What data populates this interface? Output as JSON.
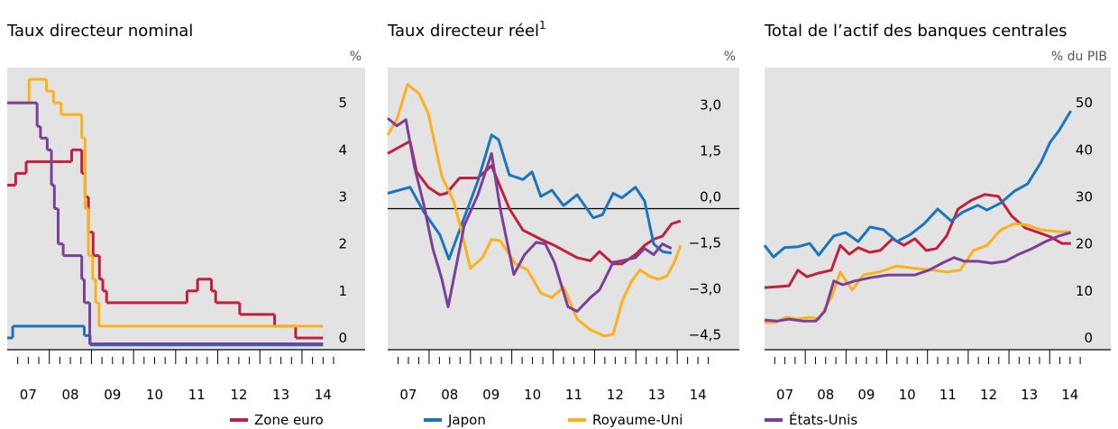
{
  "chart_data": [
    {
      "type": "step",
      "title": "Taux directeur nominal",
      "unit": "%",
      "xlim": [
        2007,
        2015.5
      ],
      "ylim": [
        0,
        6
      ],
      "yticks": [
        0,
        1,
        2,
        3,
        4,
        5
      ],
      "xticks": [
        {
          "value": 2007.5,
          "label": "07"
        },
        {
          "value": 2008.5,
          "label": "08"
        },
        {
          "value": 2009.5,
          "label": "09"
        },
        {
          "value": 2010.5,
          "label": "10"
        },
        {
          "value": 2011.5,
          "label": "11"
        },
        {
          "value": 2012.5,
          "label": "12"
        },
        {
          "value": 2013.5,
          "label": "13"
        },
        {
          "value": 2014.5,
          "label": "14"
        }
      ],
      "xticks_major": [
        2008,
        2009,
        2010,
        2011,
        2012,
        2013,
        2014
      ],
      "xticks_minor": [
        2007.25,
        2007.5,
        2007.75,
        2008.25,
        2008.5,
        2008.75,
        2009.25,
        2009.5,
        2009.75,
        2010.25,
        2010.5,
        2010.75,
        2011.25,
        2011.5,
        2011.75,
        2012.25,
        2012.5,
        2012.75,
        2013.25,
        2013.5,
        2013.75,
        2014.25,
        2014.5,
        2014.75
      ],
      "series": [
        {
          "name": "Zone euro",
          "color": "#c0203d",
          "x": [
            2007.0,
            2007.2,
            2007.45,
            2008.53,
            2008.77,
            2008.85,
            2008.93,
            2009.04,
            2009.19,
            2009.27,
            2009.36,
            2011.27,
            2011.52,
            2011.85,
            2011.95,
            2012.52,
            2013.35,
            2013.85,
            2014.5
          ],
          "values": [
            3.5,
            3.75,
            4.0,
            4.25,
            3.75,
            3.25,
            2.5,
            2.0,
            1.5,
            1.25,
            1.0,
            1.25,
            1.5,
            1.25,
            1.0,
            0.75,
            0.5,
            0.25,
            0.25
          ]
        },
        {
          "name": "Japon",
          "color": "#1a75bc",
          "x": [
            2007.0,
            2007.13,
            2008.83,
            2008.97,
            2014.5
          ],
          "values": [
            0.25,
            0.5,
            0.3,
            0.1,
            0.1
          ]
        },
        {
          "name": "Royaume-Uni",
          "color": "#fcb11c",
          "x": [
            2007.0,
            2007.52,
            2007.93,
            2008.1,
            2008.28,
            2008.77,
            2008.85,
            2008.93,
            2009.03,
            2009.1,
            2009.18,
            2014.5
          ],
          "values": [
            5.25,
            5.75,
            5.5,
            5.25,
            5.0,
            4.5,
            3.0,
            2.0,
            1.5,
            1.0,
            0.5,
            0.5
          ]
        },
        {
          "name": "États-Unis",
          "color": "#7b3f99",
          "x": [
            2007.0,
            2007.71,
            2007.79,
            2007.95,
            2008.05,
            2008.12,
            2008.21,
            2008.33,
            2008.77,
            2008.83,
            2008.96,
            2014.5
          ],
          "values": [
            5.25,
            4.75,
            4.5,
            4.25,
            3.5,
            3.0,
            2.25,
            2.0,
            1.5,
            1.0,
            0.125,
            0.125
          ]
        }
      ]
    },
    {
      "type": "line",
      "title": "Taux directeur réel",
      "title_note": "1",
      "unit": "%",
      "xlim": [
        2007,
        2015.5
      ],
      "ylim": [
        -4.6,
        4.6
      ],
      "zero_line": true,
      "yticks": [
        {
          "value": -4.5,
          "label": "−4,5"
        },
        {
          "value": -3,
          "label": "−3,0"
        },
        {
          "value": -1.5,
          "label": "−1,5"
        },
        {
          "value": 0,
          "label": "0,0"
        },
        {
          "value": 1.5,
          "label": "1,5"
        },
        {
          "value": 3,
          "label": "3,0"
        }
      ],
      "xticks": [
        {
          "value": 2007.5,
          "label": "07"
        },
        {
          "value": 2008.5,
          "label": "08"
        },
        {
          "value": 2009.5,
          "label": "09"
        },
        {
          "value": 2010.5,
          "label": "10"
        },
        {
          "value": 2011.5,
          "label": "11"
        },
        {
          "value": 2012.5,
          "label": "12"
        },
        {
          "value": 2013.5,
          "label": "13"
        },
        {
          "value": 2014.5,
          "label": "14"
        }
      ],
      "xticks_major": [
        2008,
        2009,
        2010,
        2011,
        2012,
        2013,
        2014
      ],
      "xticks_minor": [
        2007.25,
        2007.5,
        2007.75,
        2008.25,
        2008.5,
        2008.75,
        2009.25,
        2009.5,
        2009.75,
        2010.25,
        2010.5,
        2010.75,
        2011.25,
        2011.5,
        2011.75,
        2012.25,
        2012.5,
        2012.75,
        2013.25,
        2013.5,
        2013.75,
        2014.25,
        2014.5,
        2014.75
      ],
      "series": [
        {
          "name": "Zone euro",
          "color": "#c0203d",
          "x": [
            2007.0,
            2007.54,
            2007.7,
            2007.98,
            2008.26,
            2008.42,
            2008.74,
            2009.18,
            2009.51,
            2009.94,
            2010.27,
            2010.7,
            2011.03,
            2011.58,
            2011.9,
            2012.12,
            2012.45,
            2012.66,
            2012.99,
            2013.21,
            2013.43,
            2013.64,
            2013.86,
            2014.08
          ],
          "values": [
            1.8,
            2.2,
            1.2,
            0.7,
            0.45,
            0.5,
            1.0,
            1.0,
            1.4,
            0.0,
            -0.7,
            -1.0,
            -1.2,
            -1.6,
            -1.7,
            -1.4,
            -1.8,
            -1.8,
            -1.5,
            -1.2,
            -1.0,
            -0.9,
            -0.5,
            -0.4
          ]
        },
        {
          "name": "Japon",
          "color": "#1a75bc",
          "x": [
            2007.0,
            2007.54,
            2007.87,
            2008.26,
            2008.48,
            2008.74,
            2009.18,
            2009.51,
            2009.68,
            2009.94,
            2010.27,
            2010.49,
            2010.7,
            2010.97,
            2011.25,
            2011.58,
            2011.97,
            2012.19,
            2012.45,
            2012.66,
            2012.99,
            2013.21,
            2013.43,
            2013.64,
            2013.86
          ],
          "values": [
            0.5,
            0.7,
            -0.1,
            -0.85,
            -1.65,
            -0.7,
            0.9,
            2.4,
            2.25,
            1.1,
            0.95,
            1.2,
            0.4,
            0.6,
            0.1,
            0.45,
            -0.3,
            -0.2,
            0.5,
            0.35,
            0.7,
            0.25,
            -1.15,
            -1.4,
            -1.45
          ]
        },
        {
          "name": "Royaume-Uni",
          "color": "#fcb11c",
          "x": [
            2007.0,
            2007.22,
            2007.48,
            2007.76,
            2007.98,
            2008.31,
            2008.59,
            2008.74,
            2009.0,
            2009.29,
            2009.51,
            2009.72,
            2010.09,
            2010.38,
            2010.7,
            2010.97,
            2011.25,
            2011.58,
            2011.9,
            2012.23,
            2012.45,
            2012.66,
            2012.88,
            2013.1,
            2013.32,
            2013.54,
            2013.75,
            2013.93,
            2014.08
          ],
          "values": [
            2.4,
            2.9,
            4.05,
            3.75,
            3.1,
            1.05,
            0.25,
            -0.5,
            -1.95,
            -1.6,
            -1.0,
            -1.05,
            -1.8,
            -2.0,
            -2.75,
            -2.9,
            -2.55,
            -3.6,
            -3.95,
            -4.15,
            -4.1,
            -3.05,
            -2.4,
            -2.0,
            -2.2,
            -2.3,
            -2.2,
            -1.75,
            -1.2
          ]
        },
        {
          "name": "États-Unis",
          "color": "#7b3f99",
          "x": [
            2007.0,
            2007.22,
            2007.44,
            2007.65,
            2007.87,
            2008.09,
            2008.31,
            2008.46,
            2008.63,
            2008.85,
            2009.18,
            2009.51,
            2009.72,
            2010.05,
            2010.31,
            2010.59,
            2010.81,
            2011.03,
            2011.36,
            2011.58,
            2011.9,
            2012.12,
            2012.45,
            2012.66,
            2012.99,
            2013.21,
            2013.43,
            2013.64,
            2013.86
          ],
          "values": [
            2.95,
            2.7,
            2.9,
            1.35,
            0.15,
            -1.3,
            -2.3,
            -3.2,
            -2.05,
            -0.55,
            0.45,
            1.8,
            0.0,
            -2.15,
            -1.5,
            -1.1,
            -1.15,
            -1.75,
            -3.2,
            -3.35,
            -2.9,
            -2.65,
            -1.75,
            -1.7,
            -1.6,
            -1.3,
            -1.5,
            -1.15,
            -1.3
          ]
        }
      ]
    },
    {
      "type": "line",
      "title": "Total de l’actif des banques centrales",
      "unit": "% du PIB",
      "xlim": [
        2007,
        2015.5
      ],
      "ylim": [
        0,
        60
      ],
      "yticks": [
        0,
        10,
        20,
        30,
        40,
        50
      ],
      "xticks": [
        {
          "value": 2007.5,
          "label": "07"
        },
        {
          "value": 2008.5,
          "label": "08"
        },
        {
          "value": 2009.5,
          "label": "09"
        },
        {
          "value": 2010.5,
          "label": "10"
        },
        {
          "value": 2011.5,
          "label": "11"
        },
        {
          "value": 2012.5,
          "label": "12"
        },
        {
          "value": 2013.5,
          "label": "13"
        },
        {
          "value": 2014.5,
          "label": "14"
        }
      ],
      "xticks_major": [
        2008,
        2009,
        2010,
        2011,
        2012,
        2013,
        2014
      ],
      "xticks_minor": [
        2007.25,
        2007.5,
        2007.75,
        2008.25,
        2008.5,
        2008.75,
        2009.25,
        2009.5,
        2009.75,
        2010.25,
        2010.5,
        2010.75,
        2011.25,
        2011.5,
        2011.75,
        2012.25,
        2012.5,
        2012.75,
        2013.25,
        2013.5,
        2013.75,
        2014.25,
        2014.5,
        2014.75
      ],
      "series": [
        {
          "name": "Zone euro",
          "color": "#c0203d",
          "x": [
            2007.0,
            2007.31,
            2007.6,
            2007.82,
            2008.04,
            2008.33,
            2008.64,
            2008.86,
            2009.08,
            2009.3,
            2009.58,
            2009.84,
            2010.14,
            2010.42,
            2010.69,
            2010.97,
            2011.22,
            2011.47,
            2011.75,
            2012.08,
            2012.41,
            2012.74,
            2013.07,
            2013.4,
            2013.73,
            2014.02,
            2014.3,
            2014.52
          ],
          "values": [
            13.2,
            13.4,
            13.6,
            16.9,
            15.5,
            16.3,
            16.9,
            22.2,
            20.3,
            21.7,
            20.7,
            21.1,
            23.6,
            22.2,
            23.6,
            21.1,
            21.5,
            24.2,
            29.9,
            31.8,
            33.0,
            32.6,
            28.4,
            25.9,
            24.9,
            24.0,
            22.6,
            22.6
          ]
        },
        {
          "name": "Japon",
          "color": "#1a75bc",
          "x": [
            2007.0,
            2007.22,
            2007.49,
            2007.82,
            2008.11,
            2008.33,
            2008.7,
            2008.99,
            2009.3,
            2009.59,
            2009.92,
            2010.25,
            2010.58,
            2010.92,
            2011.25,
            2011.58,
            2011.87,
            2012.24,
            2012.46,
            2012.8,
            2013.13,
            2013.46,
            2013.79,
            2014.01,
            2014.23,
            2014.52
          ],
          "values": [
            22.2,
            19.7,
            21.7,
            21.9,
            22.6,
            20.1,
            24.2,
            24.9,
            23.0,
            26.1,
            25.5,
            23.0,
            24.5,
            26.8,
            29.9,
            27.4,
            29.3,
            30.7,
            29.7,
            31.2,
            33.7,
            35.3,
            39.9,
            44.1,
            46.6,
            50.8
          ]
        },
        {
          "name": "Royaume-Uni",
          "color": "#fcb11c",
          "x": [
            2007.0,
            2007.27,
            2007.53,
            2007.82,
            2008.11,
            2008.33,
            2008.64,
            2008.86,
            2009.15,
            2009.43,
            2009.81,
            2010.25,
            2010.69,
            2011.14,
            2011.47,
            2011.8,
            2012.13,
            2012.46,
            2012.8,
            2013.13,
            2013.46,
            2013.79,
            2014.23,
            2014.52
          ],
          "values": [
            5.8,
            5.8,
            6.9,
            6.5,
            6.9,
            6.5,
            11.1,
            16.5,
            12.7,
            15.9,
            16.5,
            17.8,
            17.3,
            16.9,
            16.5,
            16.9,
            21.1,
            22.2,
            25.5,
            26.8,
            26.5,
            25.5,
            25.1,
            25.1
          ]
        },
        {
          "name": "États-Unis",
          "color": "#7b3f99",
          "x": [
            2007.0,
            2007.31,
            2007.6,
            2007.93,
            2008.26,
            2008.48,
            2008.7,
            2008.92,
            2009.21,
            2009.59,
            2010.03,
            2010.36,
            2010.69,
            2011.03,
            2011.36,
            2011.65,
            2011.91,
            2012.24,
            2012.58,
            2012.91,
            2013.24,
            2013.57,
            2013.9,
            2014.23,
            2014.52
          ],
          "values": [
            6.3,
            6.1,
            6.5,
            6.1,
            6.1,
            8.2,
            14.6,
            13.8,
            14.6,
            15.3,
            15.9,
            15.9,
            15.9,
            16.9,
            18.4,
            19.6,
            18.8,
            18.8,
            18.4,
            18.8,
            20.3,
            21.5,
            23.0,
            24.2,
            24.9
          ]
        }
      ]
    }
  ]
}
